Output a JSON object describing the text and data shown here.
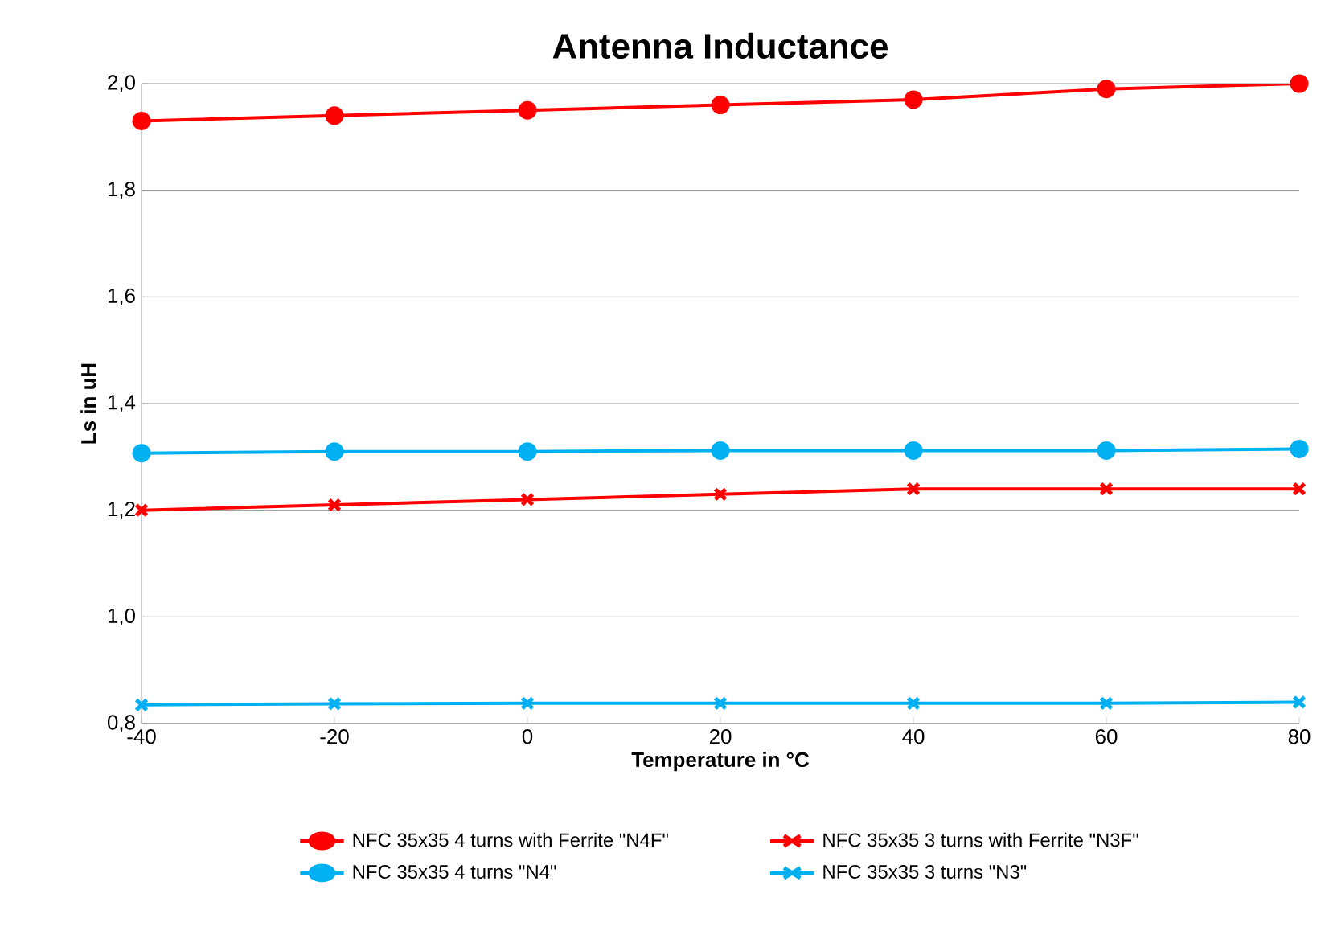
{
  "chart_data": {
    "type": "line",
    "title": "Antenna  Inductance",
    "xlabel": "Temperature in °C",
    "ylabel": "Ls in uH",
    "x": [
      -40,
      -20,
      0,
      20,
      40,
      60,
      80
    ],
    "series": [
      {
        "name": "NFC 35x35 4 turns with Ferrite \"N4F\"",
        "color": "#ff0000",
        "marker": "circle",
        "values": [
          1.93,
          1.94,
          1.95,
          1.96,
          1.97,
          1.99,
          2.0
        ]
      },
      {
        "name": "NFC 35x35 3 turns with Ferrite \"N3F\"",
        "color": "#ff0000",
        "marker": "cross",
        "values": [
          1.2,
          1.21,
          1.22,
          1.23,
          1.24,
          1.24,
          1.24
        ]
      },
      {
        "name": "NFC 35x35 4 turns \"N4\"",
        "color": "#00b0f0",
        "marker": "circle",
        "values": [
          1.307,
          1.31,
          1.31,
          1.312,
          1.312,
          1.312,
          1.315
        ]
      },
      {
        "name": "NFC 35x35 3 turns \"N3\"",
        "color": "#00b0f0",
        "marker": "cross",
        "values": [
          0.835,
          0.837,
          0.838,
          0.838,
          0.838,
          0.838,
          0.84
        ]
      }
    ],
    "xlim": [
      -40,
      80
    ],
    "xticks": [
      -40,
      -20,
      0,
      20,
      40,
      60,
      80
    ],
    "ylim": [
      0.8,
      2.0
    ],
    "yticks": [
      {
        "value": 0.8,
        "label": "0,8"
      },
      {
        "value": 1.0,
        "label": "1,0"
      },
      {
        "value": 1.2,
        "label": "1,2"
      },
      {
        "value": 1.4,
        "label": "1,4"
      },
      {
        "value": 1.6,
        "label": "1,6"
      },
      {
        "value": 1.8,
        "label": "1,8"
      },
      {
        "value": 2.0,
        "label": "2,0"
      }
    ],
    "grid": "y",
    "legend": "bottom",
    "line_style": "solid"
  }
}
